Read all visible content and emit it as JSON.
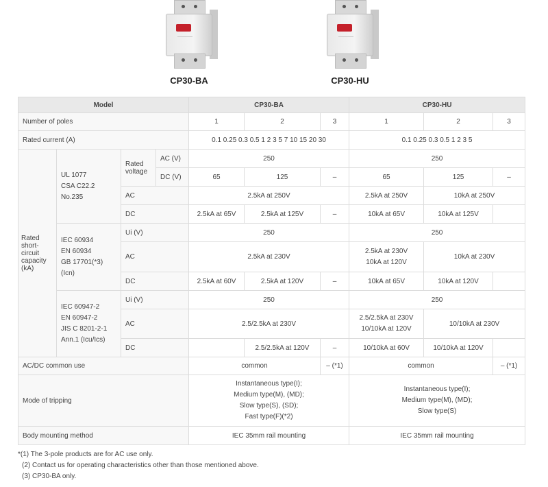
{
  "products": [
    {
      "name": "CP30-BA"
    },
    {
      "name": "CP30-HU"
    }
  ],
  "table": {
    "header": {
      "model": "Model",
      "ba": "CP30-BA",
      "hu": "CP30-HU"
    },
    "poles": {
      "label": "Number of poles",
      "values": [
        "1",
        "2",
        "3",
        "1",
        "2",
        "3"
      ]
    },
    "rated_current": {
      "label": "Rated current (A)",
      "ba": "0.1 0.25 0.3 0.5 1 2 3 5 7 10 15 20 30",
      "hu": "0.1 0.25 0.3 0.5 1 2 3 5"
    },
    "scc_label": "Rated short-circuit capacity (kA)",
    "ul": {
      "standard": [
        "UL 1077",
        "CSA C22.2",
        "No.235"
      ],
      "rated_voltage": "Rated voltage",
      "ac_v": {
        "label": "AC (V)",
        "ba": "250",
        "hu": "250"
      },
      "dc_v": {
        "label": "DC (V)",
        "values": [
          "65",
          "125",
          "–",
          "65",
          "125",
          "–"
        ]
      },
      "ac": {
        "label": "AC",
        "ba": "2.5kA at 250V",
        "hu1": "2.5kA at 250V",
        "hu2": "10kA at 250V"
      },
      "dc": {
        "label": "DC",
        "values": [
          "2.5kA at 65V",
          "2.5kA at 125V",
          "–",
          "10kA at 65V",
          "10kA at 125V",
          ""
        ]
      }
    },
    "iec60934": {
      "standard": [
        "IEC 60934",
        "EN 60934",
        "GB 17701(*3)",
        "(Icn)"
      ],
      "ui": {
        "label": "Ui (V)",
        "ba": "250",
        "hu": "250"
      },
      "ac": {
        "label": "AC",
        "ba": "2.5kA at 230V",
        "hu1": [
          "2.5kA at 230V",
          "10kA at 120V"
        ],
        "hu2": "10kA at 230V"
      },
      "dc": {
        "label": "DC",
        "values": [
          "2.5kA at 60V",
          "2.5kA at 120V",
          "–",
          "10kA at 65V",
          "10kA at 120V",
          ""
        ]
      }
    },
    "iec60947": {
      "standard": [
        "IEC 60947-2",
        "EN 60947-2",
        "JIS C 8201-2-1",
        "Ann.1 (Icu/Ics)"
      ],
      "ui": {
        "label": "Ui (V)",
        "ba": "250",
        "hu": "250"
      },
      "ac": {
        "label": "AC",
        "ba": "2.5/2.5kA at 230V",
        "hu1": [
          "2.5/2.5kA at 230V",
          "10/10kA at 120V"
        ],
        "hu2": "10/10kA at 230V"
      },
      "dc": {
        "label": "DC",
        "values": [
          "",
          "2.5/2.5kA at 120V",
          "–",
          "10/10kA at 60V",
          "10/10kA at 120V",
          ""
        ]
      }
    },
    "acdc": {
      "label": "AC/DC common use",
      "ba": "common",
      "ba3": "– (*1)",
      "hu": "common",
      "hu3": "– (*1)"
    },
    "tripping": {
      "label": "Mode of tripping",
      "ba": [
        "Instantaneous type(I);",
        "Medium type(M), (MD);",
        "Slow type(S), (SD);",
        "Fast type(F)(*2)"
      ],
      "hu": [
        "Instantaneous type(I);",
        "Medium type(M), (MD);",
        "Slow type(S)"
      ]
    },
    "mounting": {
      "label": "Body mounting method",
      "ba": "IEC 35mm rail mounting",
      "hu": "IEC 35mm rail mounting"
    }
  },
  "footnotes": [
    "*(1) The 3-pole products are for AC use only.",
    "(2) Contact us for operating characteristics other than those mentioned above.",
    "(3) CP30-BA only."
  ],
  "colors": {
    "header_bg": "#e9e9e9",
    "handle": "#c4202a"
  }
}
